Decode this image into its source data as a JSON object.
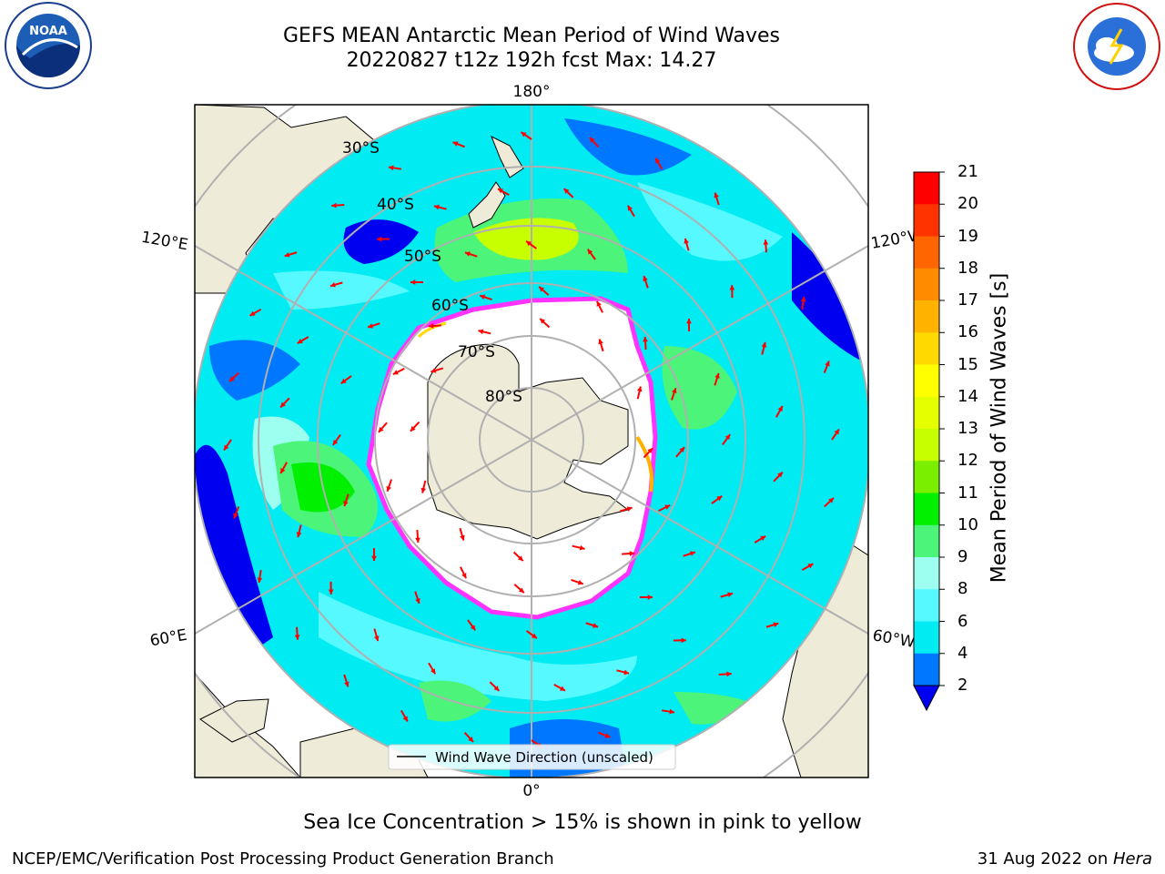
{
  "title": {
    "line1": "GEFS MEAN Antarctic Mean Period of Wind Waves",
    "line2": "20220827 t12z 192h fcst   Max: 14.27"
  },
  "logos": {
    "left": "NOAA",
    "right": "national-weather-service"
  },
  "map": {
    "projection": "south-polar-stereographic",
    "lat_labels": [
      "30°S",
      "40°S",
      "50°S",
      "60°S",
      "70°S",
      "80°S"
    ],
    "lon_labels": {
      "top": "180°",
      "bottom": "0°",
      "left_upper": "120°E",
      "left_lower": "60°E",
      "right_upper": "120°W",
      "right_lower": "60°W"
    },
    "land_color": "#efebd9",
    "ocean_color": "#00ebf2",
    "arrow_color": "#ff0000",
    "ice_edge_color": "#ff33ff",
    "grid_color": "#b0b0b0"
  },
  "legend": {
    "label": "Wind Wave Direction (unscaled)"
  },
  "colorbar": {
    "title": "Mean Period of Wind Waves [s]",
    "ticks": [
      "21",
      "20",
      "19",
      "18",
      "17",
      "16",
      "15",
      "14",
      "13",
      "12",
      "11",
      "10",
      "9",
      "8",
      "6",
      "4",
      "2"
    ],
    "colors": [
      "#ff0000",
      "#ff3300",
      "#ff6600",
      "#ff8c00",
      "#ffb300",
      "#ffd900",
      "#ffff00",
      "#e6ff00",
      "#c8ff00",
      "#7af000",
      "#00f000",
      "#4cf57a",
      "#9cfff0",
      "#55f9ff",
      "#00ebf2",
      "#0077ff",
      "#0000f0"
    ]
  },
  "footer": {
    "note": "Sea Ice Concentration > 15% is shown in pink to yellow",
    "credit": "NCEP/EMC/Verification Post Processing Product Generation Branch",
    "date_prefix": "31 Aug 2022 on ",
    "machine": "Hera"
  }
}
